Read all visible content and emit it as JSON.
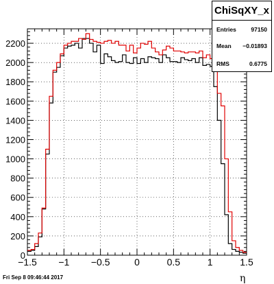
{
  "stats": {
    "title": "ChiSqXY_x",
    "rows": [
      {
        "label": "Entries",
        "value": "97150"
      },
      {
        "label": "Mean",
        "value": "−0.01893"
      },
      {
        "label": "RMS",
        "value": "0.6775"
      }
    ]
  },
  "footer": "Fri Sep  8 09:46:44 2017",
  "chart_data": {
    "type": "histogram",
    "xlabel": "η",
    "ylabel": "",
    "xlim": [
      -1.5,
      1.5
    ],
    "ylim": [
      0,
      2350
    ],
    "grid": true,
    "stats_box": "top-right",
    "x_ticks": [
      "−1.5",
      "−1",
      "−0.5",
      "0",
      "0.5",
      "1",
      "1.5"
    ],
    "y_ticks": [
      "0",
      "200",
      "400",
      "600",
      "800",
      "1000",
      "1200",
      "1400",
      "1600",
      "1800",
      "2000",
      "2200"
    ],
    "bins": {
      "low": -1.5,
      "high": 1.5,
      "count": 60
    },
    "series": [
      {
        "color": "#000000",
        "values": [
          40,
          50,
          90,
          190,
          480,
          1050,
          1580,
          1900,
          1950,
          2070,
          2150,
          2170,
          2180,
          2200,
          2150,
          2250,
          2250,
          2200,
          2110,
          2180,
          1990,
          2090,
          2060,
          2020,
          2000,
          2010,
          2080,
          2000,
          1990,
          2050,
          1990,
          2040,
          2000,
          2060,
          2050,
          2040,
          2000,
          2080,
          2050,
          2010,
          2010,
          2000,
          2050,
          2030,
          2020,
          2040,
          2000,
          2050,
          1970,
          1980,
          1960,
          1750,
          1400,
          950,
          420,
          120,
          60,
          40,
          30,
          20
        ]
      },
      {
        "color": "#e00000",
        "values": [
          50,
          60,
          120,
          230,
          490,
          1100,
          1650,
          1920,
          2000,
          2090,
          2180,
          2200,
          2220,
          2220,
          2250,
          2240,
          2300,
          2240,
          2220,
          2210,
          2200,
          2220,
          2230,
          2200,
          2220,
          2180,
          2180,
          2120,
          2180,
          2100,
          2150,
          2200,
          2190,
          2220,
          2150,
          2110,
          2080,
          2130,
          2170,
          2150,
          2120,
          2120,
          2110,
          2100,
          2110,
          2110,
          2100,
          2120,
          2050,
          2080,
          2040,
          1920,
          1680,
          1550,
          1000,
          450,
          150,
          80,
          50,
          30
        ]
      }
    ]
  }
}
